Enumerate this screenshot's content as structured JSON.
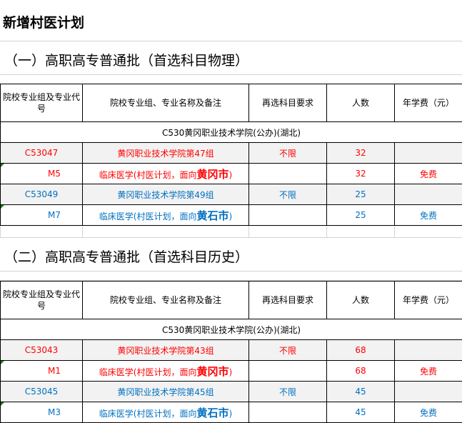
{
  "title": "新增村医计划",
  "headers": [
    "院校专业组及专业代号",
    "院校专业组、专业名称及备注",
    "再选科目要求",
    "人数",
    "年学费（元）"
  ],
  "sections": [
    {
      "title": "（一）高职高专普通批（首选科目物理）",
      "school": "C530黄冈职业技术学院(公办)(湖北)",
      "rows": [
        {
          "type": "group",
          "color": "red",
          "code": "C53047",
          "name": "黄冈职业技术学院第47组",
          "req": "不限",
          "count": "32",
          "fee": ""
        },
        {
          "type": "major",
          "color": "red",
          "code": "M5",
          "name": "临床医学(村医计划，面向",
          "name_big": "黄冈市",
          "name_end": ")",
          "req": "",
          "count": "32",
          "fee": "免费"
        },
        {
          "type": "group",
          "color": "blue",
          "code": "C53049",
          "name": "黄冈职业技术学院第49组",
          "req": "不限",
          "count": "25",
          "fee": ""
        },
        {
          "type": "major",
          "color": "blue",
          "code": "M7",
          "name": "临床医学(村医计划，面向",
          "name_big": "黄石市",
          "name_end": ")",
          "req": "",
          "count": "25",
          "fee": "免费"
        }
      ]
    },
    {
      "title": "（二）高职高专普通批（首选科目历史）",
      "school": "C530黄冈职业技术学院(公办)(湖北)",
      "rows": [
        {
          "type": "group",
          "color": "red",
          "code": "C53043",
          "name": "黄冈职业技术学院第43组",
          "req": "不限",
          "count": "68",
          "fee": ""
        },
        {
          "type": "major",
          "color": "red",
          "code": "M1",
          "name": "临床医学(村医计划，面向",
          "name_big": "黄冈市",
          "name_end": ")",
          "req": "",
          "count": "68",
          "fee": "免费"
        },
        {
          "type": "group",
          "color": "blue",
          "code": "C53045",
          "name": "黄冈职业技术学院第45组",
          "req": "不限",
          "count": "45",
          "fee": ""
        },
        {
          "type": "major",
          "color": "blue",
          "code": "M3",
          "name": "临床医学(村医计划，面向",
          "name_big": "黄石市",
          "name_end": ")",
          "req": "",
          "count": "45",
          "fee": "免费"
        }
      ]
    }
  ]
}
